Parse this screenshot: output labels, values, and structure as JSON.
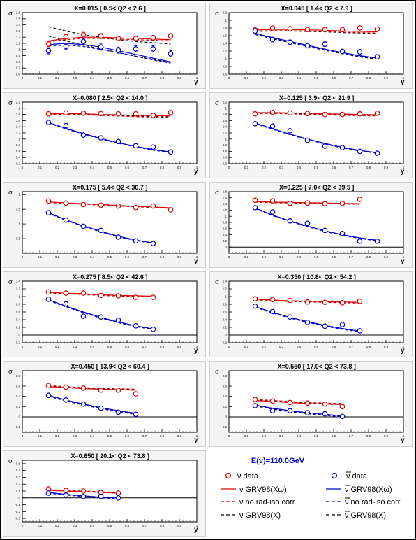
{
  "colors": {
    "nu": "#dd0000",
    "nubar": "#0000cc",
    "black": "#000000",
    "panel_bg": "#f4f4f4",
    "frame_bg": "#ffffff"
  },
  "x_axis_label": "y",
  "y_axis_label": "σ",
  "x_ticks": [
    "0",
    "0.1",
    "0.2",
    "0.3",
    "0.4",
    "0.5",
    "0.6",
    "0.7",
    "0.8",
    "0.9",
    "1"
  ],
  "legend": {
    "energy": "E(ν)=110.0GeV",
    "nu_data": "ν data",
    "nubar_data": "ν data",
    "nu_fit": "ν GRV98(Xω)",
    "nubar_fit": "ν GRV98(Xω)",
    "nu_norad": "ν no rad-iso corr",
    "nubar_norad": "ν no rad-iso corr",
    "nu_grvx": "ν GRV98(X)",
    "nubar_grvx": "ν GRV98(X)"
  },
  "chart_data": [
    {
      "type": "scatter",
      "title": "X=0.015",
      "q2": "[ 0.5< Q2 < 2.6 ]",
      "xlim": [
        0,
        1
      ],
      "ylim": [
        0.6,
        1.6
      ],
      "yticks": [
        "0.6",
        "0.7",
        "0.8",
        "0.9",
        "1",
        "1.1",
        "1.2",
        "1.3",
        "1.4",
        "1.5",
        "1.6"
      ],
      "x": [
        0.15,
        0.25,
        0.35,
        0.45,
        0.55,
        0.65,
        0.75,
        0.85
      ],
      "nu": [
        1.09,
        1.21,
        1.24,
        1.22,
        1.18,
        1.18,
        1.19,
        1.22
      ],
      "nubar": [
        0.98,
        1.05,
        1.13,
        1.04,
        0.99,
        1.01,
        1.01,
        0.93
      ],
      "nu_err": 0.04,
      "nubar_err": 0.05,
      "nu_fit": [
        1.14,
        1.18,
        1.2,
        1.2,
        1.19,
        1.18,
        1.17,
        1.16
      ],
      "nu_norad": [
        1.13,
        1.16,
        1.18,
        1.18,
        1.17,
        1.16,
        1.15,
        1.14
      ],
      "nu_grvx": [
        1.37,
        1.3,
        1.24,
        1.2,
        1.16,
        1.13,
        1.11,
        1.09
      ],
      "nubar_fit": [
        1.08,
        1.1,
        1.08,
        1.04,
        0.98,
        0.92,
        0.86,
        0.8
      ],
      "nubar_norad": [
        1.06,
        1.07,
        1.05,
        1.0,
        0.95,
        0.89,
        0.83,
        0.78
      ],
      "nubar_grvx": [
        1.22,
        1.14,
        1.07,
        1.01,
        0.95,
        0.89,
        0.84,
        0.79
      ]
    },
    {
      "type": "scatter",
      "title": "X=0.045",
      "q2": "[ 1.4< Q2 < 7.9 ]",
      "xlim": [
        0,
        1
      ],
      "ylim": [
        0.6,
        2.2
      ],
      "yticks": [
        "0.6",
        "0.8",
        "1",
        "1.2",
        "1.4",
        "1.6",
        "1.8",
        "2",
        "2.2"
      ],
      "x": [
        0.15,
        0.25,
        0.35,
        0.45,
        0.55,
        0.65,
        0.75,
        0.85
      ],
      "nu": [
        1.75,
        1.8,
        1.78,
        1.76,
        1.76,
        1.76,
        1.8,
        1.77
      ],
      "nubar": [
        1.72,
        1.5,
        1.43,
        1.34,
        1.38,
        1.19,
        1.18,
        1.05
      ],
      "nu_err": 0.05,
      "nubar_err": 0.06,
      "nu_fit": [
        1.75,
        1.76,
        1.76,
        1.75,
        1.74,
        1.72,
        1.71,
        1.7
      ],
      "nu_norad": [
        1.72,
        1.73,
        1.73,
        1.72,
        1.71,
        1.69,
        1.68,
        1.67
      ],
      "nu_grvx": [
        1.71,
        1.72,
        1.72,
        1.71,
        1.7,
        1.68,
        1.67,
        1.66
      ],
      "nubar_fit": [
        1.66,
        1.55,
        1.45,
        1.35,
        1.25,
        1.16,
        1.08,
        1.02
      ],
      "nubar_norad": [
        1.64,
        1.53,
        1.43,
        1.33,
        1.23,
        1.14,
        1.06,
        1.0
      ],
      "nubar_grvx": [
        1.63,
        1.52,
        1.42,
        1.32,
        1.22,
        1.13,
        1.05,
        0.99
      ]
    },
    {
      "type": "scatter",
      "title": "X=0.080",
      "q2": "[ 2.5< Q2 < 14.0 ]",
      "xlim": [
        0,
        1
      ],
      "ylim": [
        0.2,
        2.2
      ],
      "yticks": [
        "0.2",
        "0.4",
        "0.6",
        "0.8",
        "1",
        "1.2",
        "1.4",
        "1.6",
        "1.8",
        "2",
        "2.2"
      ],
      "x": [
        0.15,
        0.25,
        0.35,
        0.45,
        0.55,
        0.65,
        0.75,
        0.85
      ],
      "nu": [
        1.82,
        1.85,
        1.84,
        1.83,
        1.82,
        1.82,
        1.77,
        1.86
      ],
      "nubar": [
        1.54,
        1.44,
        1.13,
        1.04,
        0.92,
        0.78,
        0.74,
        0.58
      ],
      "nu_err": 0.04,
      "nubar_err": 0.05,
      "nu_fit": [
        1.82,
        1.83,
        1.82,
        1.8,
        1.79,
        1.77,
        1.76,
        1.75
      ],
      "nu_norad": [
        1.8,
        1.8,
        1.79,
        1.77,
        1.75,
        1.73,
        1.71,
        1.69
      ],
      "nu_grvx": [
        1.8,
        1.81,
        1.8,
        1.78,
        1.77,
        1.75,
        1.73,
        1.72
      ],
      "nubar_fit": [
        1.54,
        1.35,
        1.18,
        1.02,
        0.88,
        0.76,
        0.66,
        0.58
      ],
      "nubar_norad": [
        1.52,
        1.33,
        1.16,
        1.0,
        0.86,
        0.74,
        0.64,
        0.56
      ],
      "nubar_grvx": [
        1.53,
        1.34,
        1.17,
        1.01,
        0.87,
        0.75,
        0.65,
        0.57
      ]
    },
    {
      "type": "scatter",
      "title": "X=0.125",
      "q2": "[ 3.9< Q2 < 21.9 ]",
      "xlim": [
        0,
        1
      ],
      "ylim": [
        0.2,
        2.2
      ],
      "yticks": [
        "0.2",
        "0.4",
        "0.6",
        "0.8",
        "1",
        "1.2",
        "1.4",
        "1.6",
        "1.8",
        "2",
        "2.2"
      ],
      "x": [
        0.15,
        0.25,
        0.35,
        0.45,
        0.55,
        0.65,
        0.75,
        0.85
      ],
      "nu": [
        1.82,
        1.87,
        1.85,
        1.83,
        1.8,
        1.8,
        1.82,
        1.84
      ],
      "nubar": [
        1.5,
        1.42,
        1.27,
        0.96,
        0.77,
        0.72,
        0.6,
        0.54
      ],
      "nu_err": 0.05,
      "nubar_err": 0.05,
      "nu_fit": [
        1.86,
        1.86,
        1.85,
        1.84,
        1.82,
        1.81,
        1.8,
        1.79
      ],
      "nu_norad": [
        1.83,
        1.83,
        1.82,
        1.8,
        1.79,
        1.77,
        1.76,
        1.75
      ],
      "nu_grvx": [
        1.84,
        1.84,
        1.83,
        1.82,
        1.8,
        1.79,
        1.78,
        1.77
      ],
      "nubar_fit": [
        1.52,
        1.34,
        1.16,
        1.0,
        0.86,
        0.73,
        0.63,
        0.56
      ],
      "nubar_norad": [
        1.5,
        1.32,
        1.14,
        0.98,
        0.84,
        0.71,
        0.61,
        0.54
      ],
      "nubar_grvx": [
        1.51,
        1.33,
        1.15,
        0.99,
        0.85,
        0.72,
        0.62,
        0.55
      ]
    },
    {
      "type": "scatter",
      "title": "X=0.175",
      "q2": "[ 5.4< Q2 < 30.7 ]",
      "xlim": [
        0,
        1
      ],
      "ylim": [
        0.0,
        2.1
      ],
      "yticks": [
        "0.5",
        "1",
        "1.5",
        "2"
      ],
      "x": [
        0.15,
        0.25,
        0.35,
        0.45,
        0.55,
        0.65,
        0.75,
        0.85
      ],
      "nu": [
        1.78,
        1.71,
        1.66,
        1.64,
        1.61,
        1.56,
        1.61,
        1.48
      ],
      "nubar": [
        1.38,
        1.13,
        0.92,
        0.78,
        0.55,
        0.42,
        0.33
      ],
      "nu_err": 0.05,
      "nubar_err": 0.03,
      "nu_fit": [
        1.75,
        1.72,
        1.69,
        1.66,
        1.63,
        1.6,
        1.58,
        1.55
      ],
      "nu_norad": [
        1.73,
        1.7,
        1.67,
        1.64,
        1.61,
        1.58,
        1.56,
        1.53
      ],
      "nu_grvx": [
        1.74,
        1.71,
        1.68,
        1.65,
        1.62,
        1.59,
        1.57,
        1.54
      ],
      "nubar_fit": [
        1.38,
        1.14,
        0.93,
        0.75,
        0.58,
        0.45,
        0.35
      ],
      "nubar_norad": [
        1.36,
        1.12,
        0.91,
        0.73,
        0.56,
        0.43,
        0.33
      ],
      "nubar_grvx": [
        1.37,
        1.13,
        0.92,
        0.74,
        0.57,
        0.44,
        0.34
      ]
    },
    {
      "type": "scatter",
      "title": "X=0.225",
      "q2": "[ 7.0< Q2 < 39.5 ]",
      "xlim": [
        0,
        1
      ],
      "ylim": [
        -0.2,
        1.8
      ],
      "yticks": [
        "0",
        "0.2",
        "0.4",
        "0.6",
        "0.8",
        "1",
        "1.2",
        "1.4",
        "1.6",
        "1.8"
      ],
      "x": [
        0.15,
        0.25,
        0.35,
        0.45,
        0.55,
        0.65,
        0.75,
        0.85
      ],
      "nu": [
        1.52,
        1.5,
        1.42,
        1.43,
        1.41,
        1.42,
        1.55
      ],
      "nubar": [
        1.28,
        1.14,
        0.85,
        0.77,
        0.54,
        0.44,
        0.19,
        0.19
      ],
      "nu_err": 0.04,
      "nubar_err": 0.03,
      "nu_fit": [
        1.48,
        1.46,
        1.45,
        1.44,
        1.43,
        1.42,
        1.41
      ],
      "nu_norad": [
        1.46,
        1.44,
        1.43,
        1.42,
        1.41,
        1.4,
        1.39
      ],
      "nu_grvx": [
        1.47,
        1.45,
        1.44,
        1.43,
        1.42,
        1.41,
        1.4
      ],
      "nubar_fit": [
        1.27,
        1.04,
        0.85,
        0.68,
        0.53,
        0.4,
        0.3,
        0.22
      ],
      "nubar_norad": [
        1.25,
        1.02,
        0.83,
        0.66,
        0.51,
        0.38,
        0.28,
        0.2
      ],
      "nubar_grvx": [
        1.26,
        1.03,
        0.84,
        0.67,
        0.52,
        0.39,
        0.29,
        0.21
      ]
    },
    {
      "type": "scatter",
      "title": "X=0.275",
      "q2": "[ 8.5< Q2 < 42.6 ]",
      "xlim": [
        0,
        1
      ],
      "ylim": [
        -0.2,
        1.4
      ],
      "yticks": [
        "-0.2",
        "0",
        "0.2",
        "0.4",
        "0.6",
        "0.8",
        "1",
        "1.2",
        "1.4"
      ],
      "x": [
        0.15,
        0.25,
        0.35,
        0.45,
        0.55,
        0.65,
        0.75,
        0.85
      ],
      "nu": [
        1.12,
        1.09,
        1.09,
        1.03,
        1.02,
        0.98,
        0.98
      ],
      "nubar": [
        0.93,
        0.81,
        0.49,
        0.47,
        0.39,
        0.24,
        0.15
      ],
      "nu_err": 0.03,
      "nubar_err": 0.03,
      "nu_fit": [
        1.11,
        1.09,
        1.07,
        1.05,
        1.03,
        1.02,
        1.01
      ],
      "nu_norad": [
        1.09,
        1.07,
        1.05,
        1.03,
        1.01,
        1.0,
        0.99
      ],
      "nu_grvx": [
        1.1,
        1.08,
        1.06,
        1.04,
        1.02,
        1.01,
        1.0
      ],
      "nubar_fit": [
        0.92,
        0.75,
        0.6,
        0.46,
        0.34,
        0.24,
        0.16
      ],
      "nubar_norad": [
        0.9,
        0.73,
        0.58,
        0.44,
        0.32,
        0.22,
        0.14
      ],
      "nubar_grvx": [
        0.91,
        0.74,
        0.59,
        0.45,
        0.33,
        0.23,
        0.15
      ]
    },
    {
      "type": "scatter",
      "title": "X=0.350",
      "q2": "[ 10.8< Q2 < 54.2 ]",
      "xlim": [
        0,
        1
      ],
      "ylim": [
        -0.2,
        1.4
      ],
      "yticks": [
        "-0.2",
        "0",
        "0.2",
        "0.4",
        "0.6",
        "0.8",
        "1",
        "1.2",
        "1.4"
      ],
      "x": [
        0.15,
        0.25,
        0.35,
        0.45,
        0.55,
        0.65,
        0.75,
        0.85
      ],
      "nu": [
        0.94,
        0.92,
        0.9,
        0.86,
        0.85,
        0.84,
        0.88
      ],
      "nubar": [
        0.75,
        0.61,
        0.47,
        0.33,
        0.23,
        0.27,
        0.11
      ],
      "nu_err": 0.03,
      "nubar_err": 0.03,
      "nu_fit": [
        0.93,
        0.91,
        0.89,
        0.88,
        0.87,
        0.86,
        0.85
      ],
      "nu_norad": [
        0.91,
        0.89,
        0.87,
        0.86,
        0.85,
        0.84,
        0.83
      ],
      "nu_grvx": [
        0.92,
        0.9,
        0.88,
        0.87,
        0.86,
        0.85,
        0.84
      ],
      "nubar_fit": [
        0.74,
        0.59,
        0.46,
        0.35,
        0.25,
        0.17,
        0.1
      ],
      "nubar_norad": [
        0.72,
        0.57,
        0.44,
        0.33,
        0.23,
        0.15,
        0.08
      ],
      "nubar_grvx": [
        0.73,
        0.58,
        0.45,
        0.34,
        0.24,
        0.16,
        0.09
      ]
    },
    {
      "type": "scatter",
      "title": "X=0.450",
      "q2": "[ 13.9< Q2 < 60.4 ]",
      "xlim": [
        0,
        1
      ],
      "ylim": [
        -0.3,
        0.9
      ],
      "yticks": [
        "-0.2",
        "0",
        "0.2",
        "0.4",
        "0.6",
        "0.8"
      ],
      "x": [
        0.15,
        0.25,
        0.35,
        0.45,
        0.55,
        0.65
      ],
      "nu": [
        0.61,
        0.58,
        0.56,
        0.52,
        0.52,
        0.45
      ],
      "nubar": [
        0.42,
        0.33,
        0.25,
        0.17,
        0.09,
        0.05
      ],
      "nu_err": 0.02,
      "nubar_err": 0.02,
      "nu_fit": [
        0.59,
        0.57,
        0.55,
        0.54,
        0.53,
        0.52
      ],
      "nu_norad": [
        0.61,
        0.59,
        0.57,
        0.56,
        0.55,
        0.54
      ],
      "nu_grvx": [
        0.6,
        0.58,
        0.56,
        0.55,
        0.54,
        0.53
      ],
      "nubar_fit": [
        0.42,
        0.33,
        0.25,
        0.18,
        0.12,
        0.07
      ],
      "nubar_norad": [
        0.4,
        0.31,
        0.23,
        0.16,
        0.1,
        0.05
      ],
      "nubar_grvx": [
        0.41,
        0.32,
        0.24,
        0.17,
        0.11,
        0.06
      ]
    },
    {
      "type": "scatter",
      "title": "X=0.550",
      "q2": "[ 17.0< Q2 < 73.8 ]",
      "xlim": [
        0,
        1
      ],
      "ylim": [
        -0.3,
        0.9
      ],
      "yticks": [
        "-0.2",
        "0",
        "0.2",
        "0.4",
        "0.6",
        "0.8"
      ],
      "x": [
        0.15,
        0.25,
        0.35,
        0.45,
        0.55,
        0.65
      ],
      "nu": [
        0.34,
        0.31,
        0.28,
        0.27,
        0.25,
        0.2
      ],
      "nubar": [
        0.22,
        0.12,
        0.12,
        0.08,
        0.06,
        0.01
      ],
      "nu_err": 0.02,
      "nubar_err": 0.02,
      "nu_fit": [
        0.32,
        0.3,
        0.28,
        0.26,
        0.25,
        0.24
      ],
      "nu_norad": [
        0.34,
        0.32,
        0.3,
        0.28,
        0.27,
        0.26
      ],
      "nu_grvx": [
        0.33,
        0.31,
        0.29,
        0.27,
        0.26,
        0.25
      ],
      "nubar_fit": [
        0.23,
        0.17,
        0.12,
        0.08,
        0.05,
        0.02
      ],
      "nubar_norad": [
        0.21,
        0.15,
        0.1,
        0.06,
        0.03,
        0.0
      ],
      "nubar_grvx": [
        0.22,
        0.16,
        0.11,
        0.07,
        0.04,
        0.01
      ]
    },
    {
      "type": "scatter",
      "title": "X=0.650",
      "q2": "[ 20.1< Q2 < 73.8 ]",
      "xlim": [
        0,
        1
      ],
      "ylim": [
        -0.35,
        0.55
      ],
      "yticks": [
        "-0.3",
        "-0.2",
        "-0.1",
        "0",
        "0.1",
        "0.2",
        "0.3",
        "0.4",
        "0.5"
      ],
      "x": [
        0.15,
        0.25,
        0.35,
        0.45,
        0.55
      ],
      "nu": [
        0.13,
        0.11,
        0.1,
        0.08,
        0.07
      ],
      "nubar": [
        0.07,
        0.04,
        0.02,
        0.02,
        0.0
      ],
      "nu_err": 0.02,
      "nubar_err": 0.02,
      "nu_fit": [
        0.11,
        0.1,
        0.09,
        0.08,
        0.07
      ],
      "nu_norad": [
        0.12,
        0.11,
        0.1,
        0.09,
        0.08
      ],
      "nu_grvx": [
        0.11,
        0.1,
        0.09,
        0.08,
        0.07
      ],
      "nubar_fit": [
        0.08,
        0.05,
        0.03,
        0.01,
        0.0
      ],
      "nubar_norad": [
        0.07,
        0.04,
        0.02,
        0.0,
        -0.01
      ],
      "nubar_grvx": [
        0.08,
        0.05,
        0.03,
        0.01,
        0.0
      ]
    }
  ]
}
